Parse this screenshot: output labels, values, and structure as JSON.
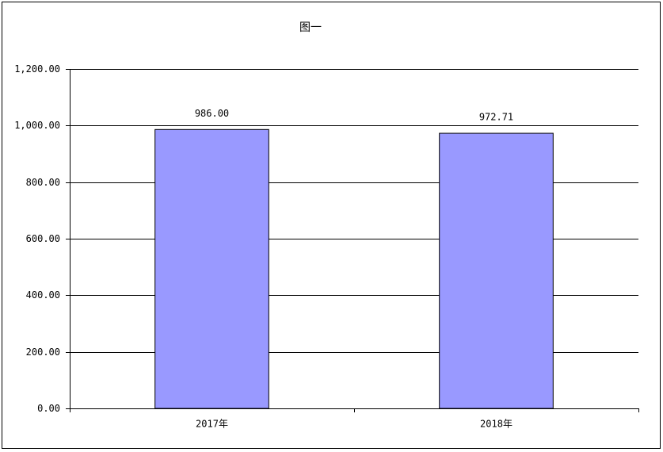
{
  "chart_data": {
    "type": "bar",
    "title": "图一",
    "categories": [
      "2017年",
      "2018年"
    ],
    "values": [
      986.0,
      972.71
    ],
    "value_labels": [
      "986.00",
      "972.71"
    ],
    "color": "#9999ff",
    "ylim": [
      0,
      1200
    ],
    "yticks": [
      {
        "value": 0,
        "label": "0.00"
      },
      {
        "value": 200,
        "label": "200.00"
      },
      {
        "value": 400,
        "label": "400.00"
      },
      {
        "value": 600,
        "label": "600.00"
      },
      {
        "value": 800,
        "label": "800.00"
      },
      {
        "value": 1000,
        "label": "1,000.00"
      },
      {
        "value": 1200,
        "label": "1,200.00"
      }
    ],
    "grid": true
  }
}
